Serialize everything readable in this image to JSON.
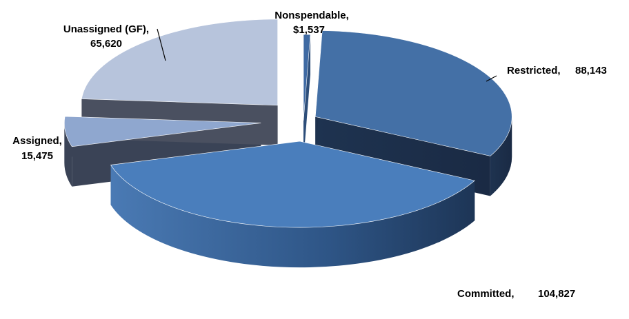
{
  "chart_data": {
    "type": "pie",
    "style": "3d-exploded",
    "slices": [
      {
        "key": "nonspendable",
        "label": "Nonspendable,",
        "value_text": "$1,537",
        "value": 1537,
        "color": "#3f6aa3"
      },
      {
        "key": "restricted",
        "label": "Restricted,",
        "value_text": "88,143",
        "value": 88143,
        "color": "#4470a6"
      },
      {
        "key": "committed",
        "label": "Committed,",
        "value_text": "104,827",
        "value": 104827,
        "color": "#4a7ebc"
      },
      {
        "key": "assigned",
        "label": "Assigned,",
        "value_text": "15,475",
        "value": 15475,
        "color": "#8fa7cf"
      },
      {
        "key": "unassigned",
        "label": "Unassigned (GF),",
        "value_text": "65,620",
        "value": 65620,
        "color": "#b7c4dc"
      }
    ]
  }
}
